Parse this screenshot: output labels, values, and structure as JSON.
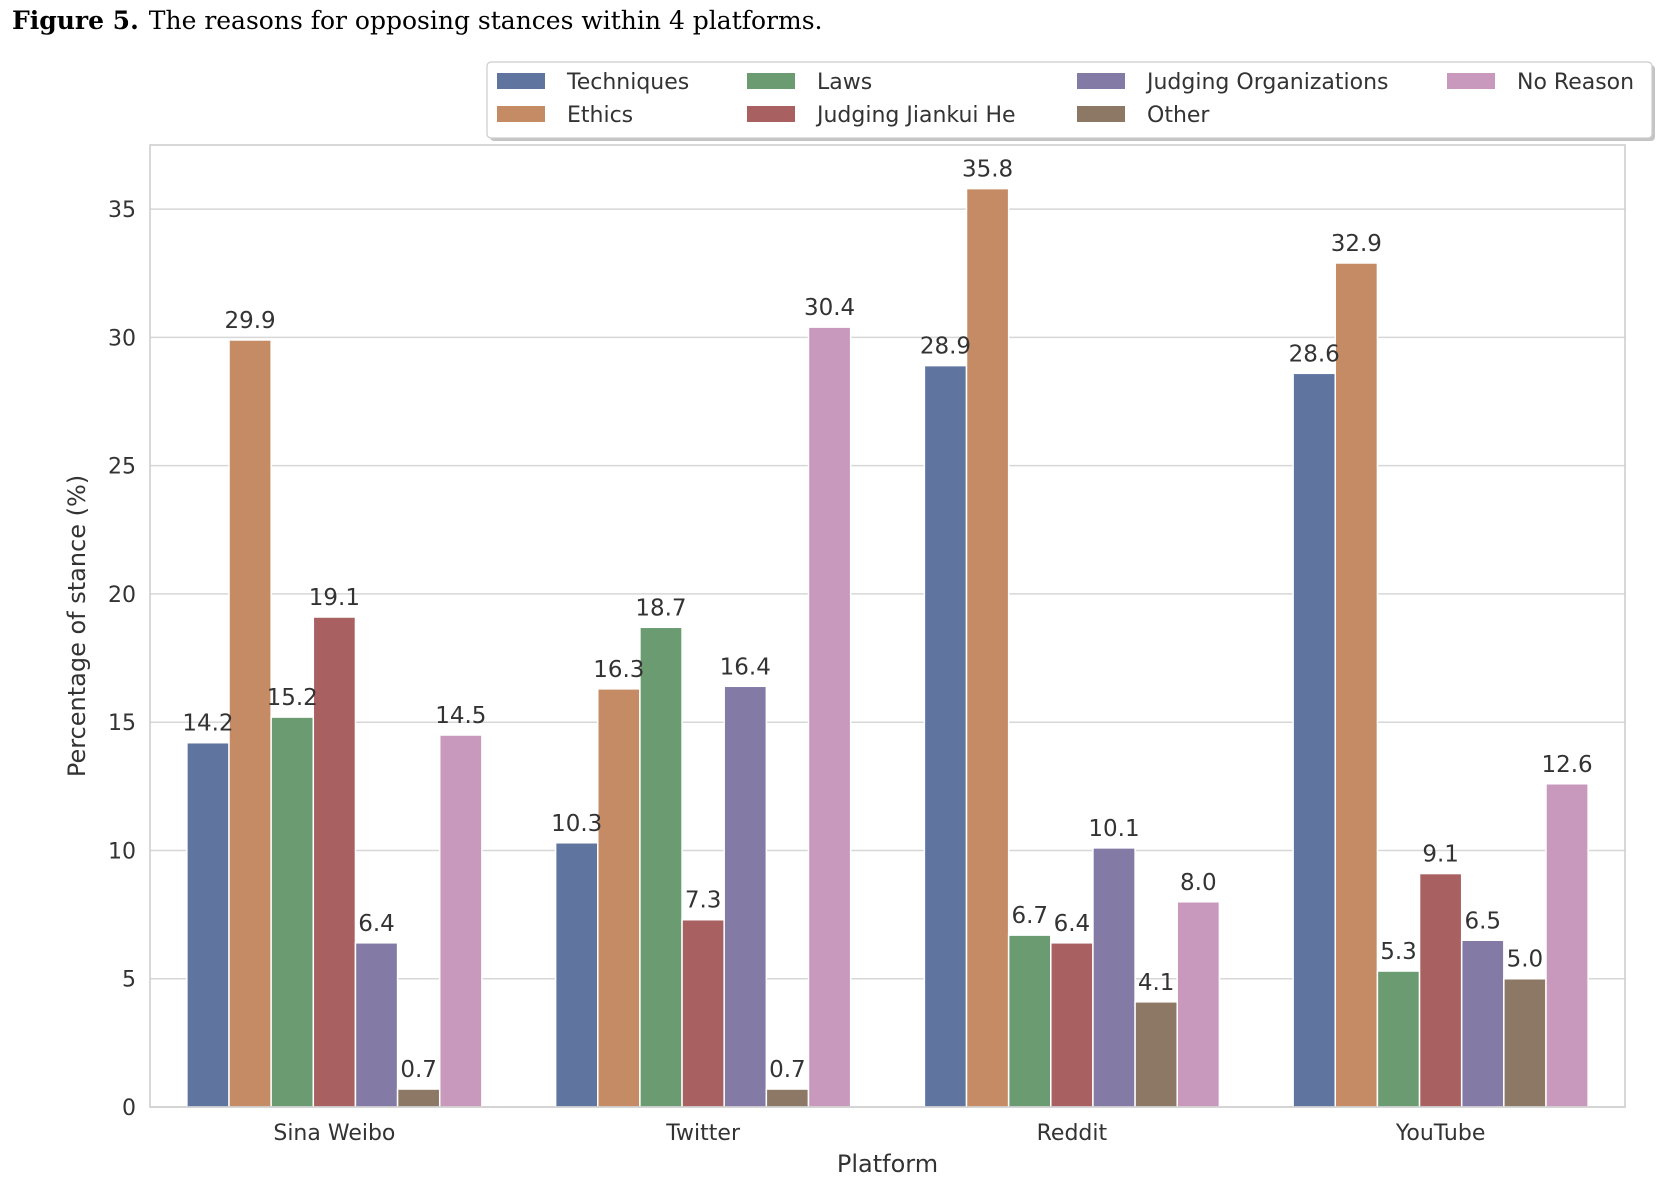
{
  "caption": {
    "label": "Figure 5.",
    "text": "The reasons for opposing stances within 4 platforms."
  },
  "chart_data": {
    "type": "bar",
    "xlabel": "Platform",
    "ylabel": "Percentage of stance (%)",
    "ylim": [
      0,
      37.5
    ],
    "yticks": [
      0,
      5,
      10,
      15,
      20,
      25,
      30,
      35
    ],
    "grid": true,
    "legend": "top",
    "categories": [
      "Sina Weibo",
      "Twitter",
      "Reddit",
      "YouTube"
    ],
    "series": [
      {
        "name": "Techniques",
        "color": "#5f75a0",
        "values": [
          14.2,
          10.3,
          28.9,
          28.6
        ]
      },
      {
        "name": "Ethics",
        "color": "#c58b64",
        "values": [
          29.9,
          16.3,
          35.8,
          32.9
        ]
      },
      {
        "name": "Laws",
        "color": "#6b9c71",
        "values": [
          15.2,
          18.7,
          6.7,
          5.3
        ]
      },
      {
        "name": "Judging Jiankui He",
        "color": "#a96060",
        "values": [
          19.1,
          7.3,
          6.4,
          9.1
        ]
      },
      {
        "name": "Judging Organizations",
        "color": "#837aa6",
        "values": [
          6.4,
          16.4,
          10.1,
          6.5
        ]
      },
      {
        "name": "Other",
        "color": "#8c7865",
        "values": [
          0.7,
          0.7,
          4.1,
          5.0
        ]
      },
      {
        "name": "No Reason",
        "color": "#c898bd",
        "values": [
          14.5,
          30.4,
          8.0,
          12.6
        ]
      }
    ],
    "data_labels": [
      [
        "14.2",
        "10.3",
        "28.9",
        "28.6"
      ],
      [
        "29.9",
        "16.3",
        "35.8",
        "32.9"
      ],
      [
        "15.2",
        "18.7",
        "6.7",
        "5.3"
      ],
      [
        "19.1",
        "7.3",
        "6.4",
        "9.1"
      ],
      [
        "6.4",
        "16.4",
        "10.1",
        "6.5"
      ],
      [
        "0.7",
        "0.7",
        "4.1",
        "5.0"
      ],
      [
        "14.5",
        "30.4",
        "8.0",
        "12.6"
      ]
    ]
  }
}
